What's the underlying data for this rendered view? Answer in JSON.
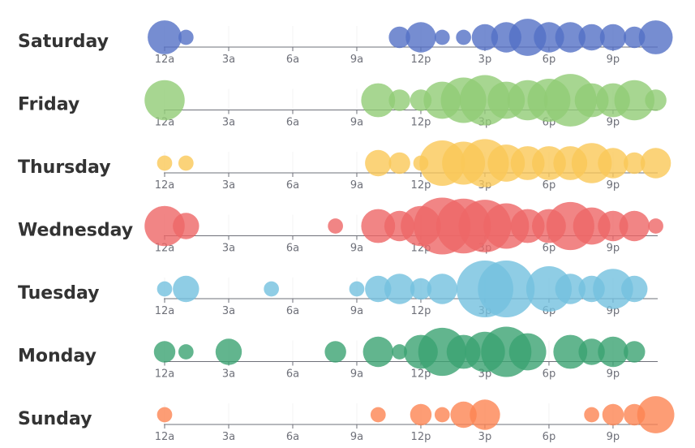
{
  "chart_data": {
    "type": "scatter",
    "subtype": "single-axis bubble (punch card)",
    "hours": [
      "12a",
      "1a",
      "2a",
      "3a",
      "4a",
      "5a",
      "6a",
      "7a",
      "8a",
      "9a",
      "10a",
      "11a",
      "12p",
      "1p",
      "2p",
      "3p",
      "4p",
      "5p",
      "6p",
      "7p",
      "8p",
      "9p",
      "10p",
      "11p"
    ],
    "tick_labels": [
      "12a",
      "3a",
      "6a",
      "9a",
      "12p",
      "3p",
      "6p",
      "9p"
    ],
    "days": [
      {
        "name": "Saturday",
        "color": "#5470c6",
        "values": [
          5,
          1,
          0,
          0,
          0,
          0,
          0,
          0,
          0,
          0,
          0,
          2,
          4,
          1,
          1,
          3,
          4,
          6,
          4,
          4,
          3,
          3,
          2,
          5
        ]
      },
      {
        "name": "Friday",
        "color": "#91cc75",
        "values": [
          7,
          0,
          0,
          0,
          0,
          0,
          0,
          0,
          0,
          0,
          5,
          2,
          2,
          6,
          9,
          11,
          6,
          7,
          8,
          12,
          5,
          5,
          7,
          2
        ]
      },
      {
        "name": "Thursday",
        "color": "#fac858",
        "values": [
          1,
          1,
          0,
          0,
          0,
          0,
          0,
          0,
          0,
          0,
          3,
          2,
          1,
          9,
          8,
          10,
          6,
          5,
          5,
          5,
          7,
          4,
          2,
          4
        ]
      },
      {
        "name": "Wednesday",
        "color": "#ee6666",
        "values": [
          7,
          3,
          0,
          0,
          0,
          0,
          0,
          0,
          1,
          0,
          5,
          4,
          7,
          14,
          13,
          12,
          9,
          5,
          5,
          10,
          6,
          4,
          4,
          1
        ]
      },
      {
        "name": "Tuesday",
        "color": "#73c0de",
        "values": [
          1,
          3,
          0,
          0,
          0,
          1,
          0,
          0,
          0,
          1,
          3,
          4,
          2,
          4,
          0,
          14,
          14,
          0,
          9,
          4,
          3,
          7,
          3,
          0
        ]
      },
      {
        "name": "Monday",
        "color": "#3ba272",
        "values": [
          2,
          1,
          0,
          3,
          0,
          0,
          0,
          0,
          2,
          0,
          4,
          1,
          5,
          10,
          5,
          7,
          11,
          6,
          0,
          5,
          3,
          4,
          2,
          0
        ]
      },
      {
        "name": "Sunday",
        "color": "#fc8452",
        "values": [
          1,
          0,
          0,
          0,
          0,
          0,
          0,
          0,
          0,
          0,
          1,
          0,
          2,
          1,
          3,
          4,
          0,
          0,
          0,
          0,
          1,
          2,
          2,
          6
        ]
      }
    ],
    "max_value": 14
  }
}
